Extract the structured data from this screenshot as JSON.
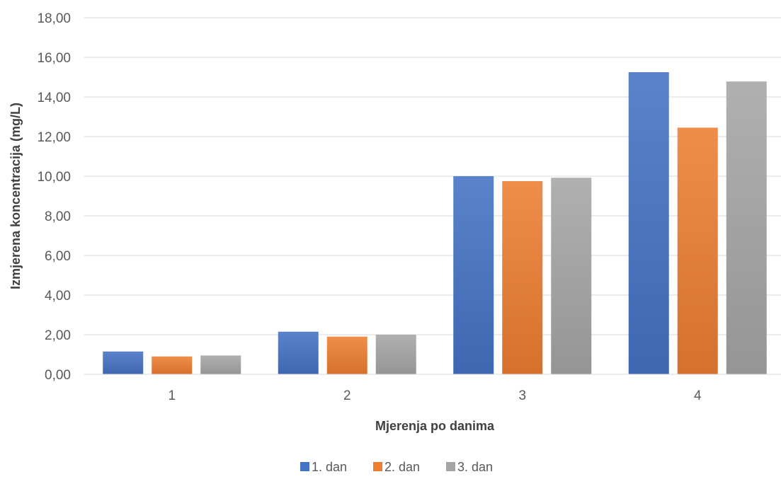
{
  "chart_data": {
    "type": "bar",
    "title": "",
    "xlabel": "Mjerenja po danima",
    "ylabel": "Izmjerena koncentracija (mg/L)",
    "categories": [
      "1",
      "2",
      "3",
      "4"
    ],
    "series": [
      {
        "name": "1. dan",
        "values": [
          1.15,
          2.15,
          10.0,
          15.25
        ],
        "color": "#4472C4"
      },
      {
        "name": "2. dan",
        "values": [
          0.9,
          1.9,
          9.75,
          12.45
        ],
        "color": "#ED7D31"
      },
      {
        "name": "3. dan",
        "values": [
          0.95,
          2.0,
          9.92,
          14.78
        ],
        "color": "#A5A5A5"
      }
    ],
    "ylim": [
      0,
      18
    ],
    "yticks": [
      "0,00",
      "2,00",
      "4,00",
      "6,00",
      "8,00",
      "10,00",
      "12,00",
      "14,00",
      "16,00",
      "18,00"
    ],
    "grid": true,
    "legend_position": "bottom"
  }
}
